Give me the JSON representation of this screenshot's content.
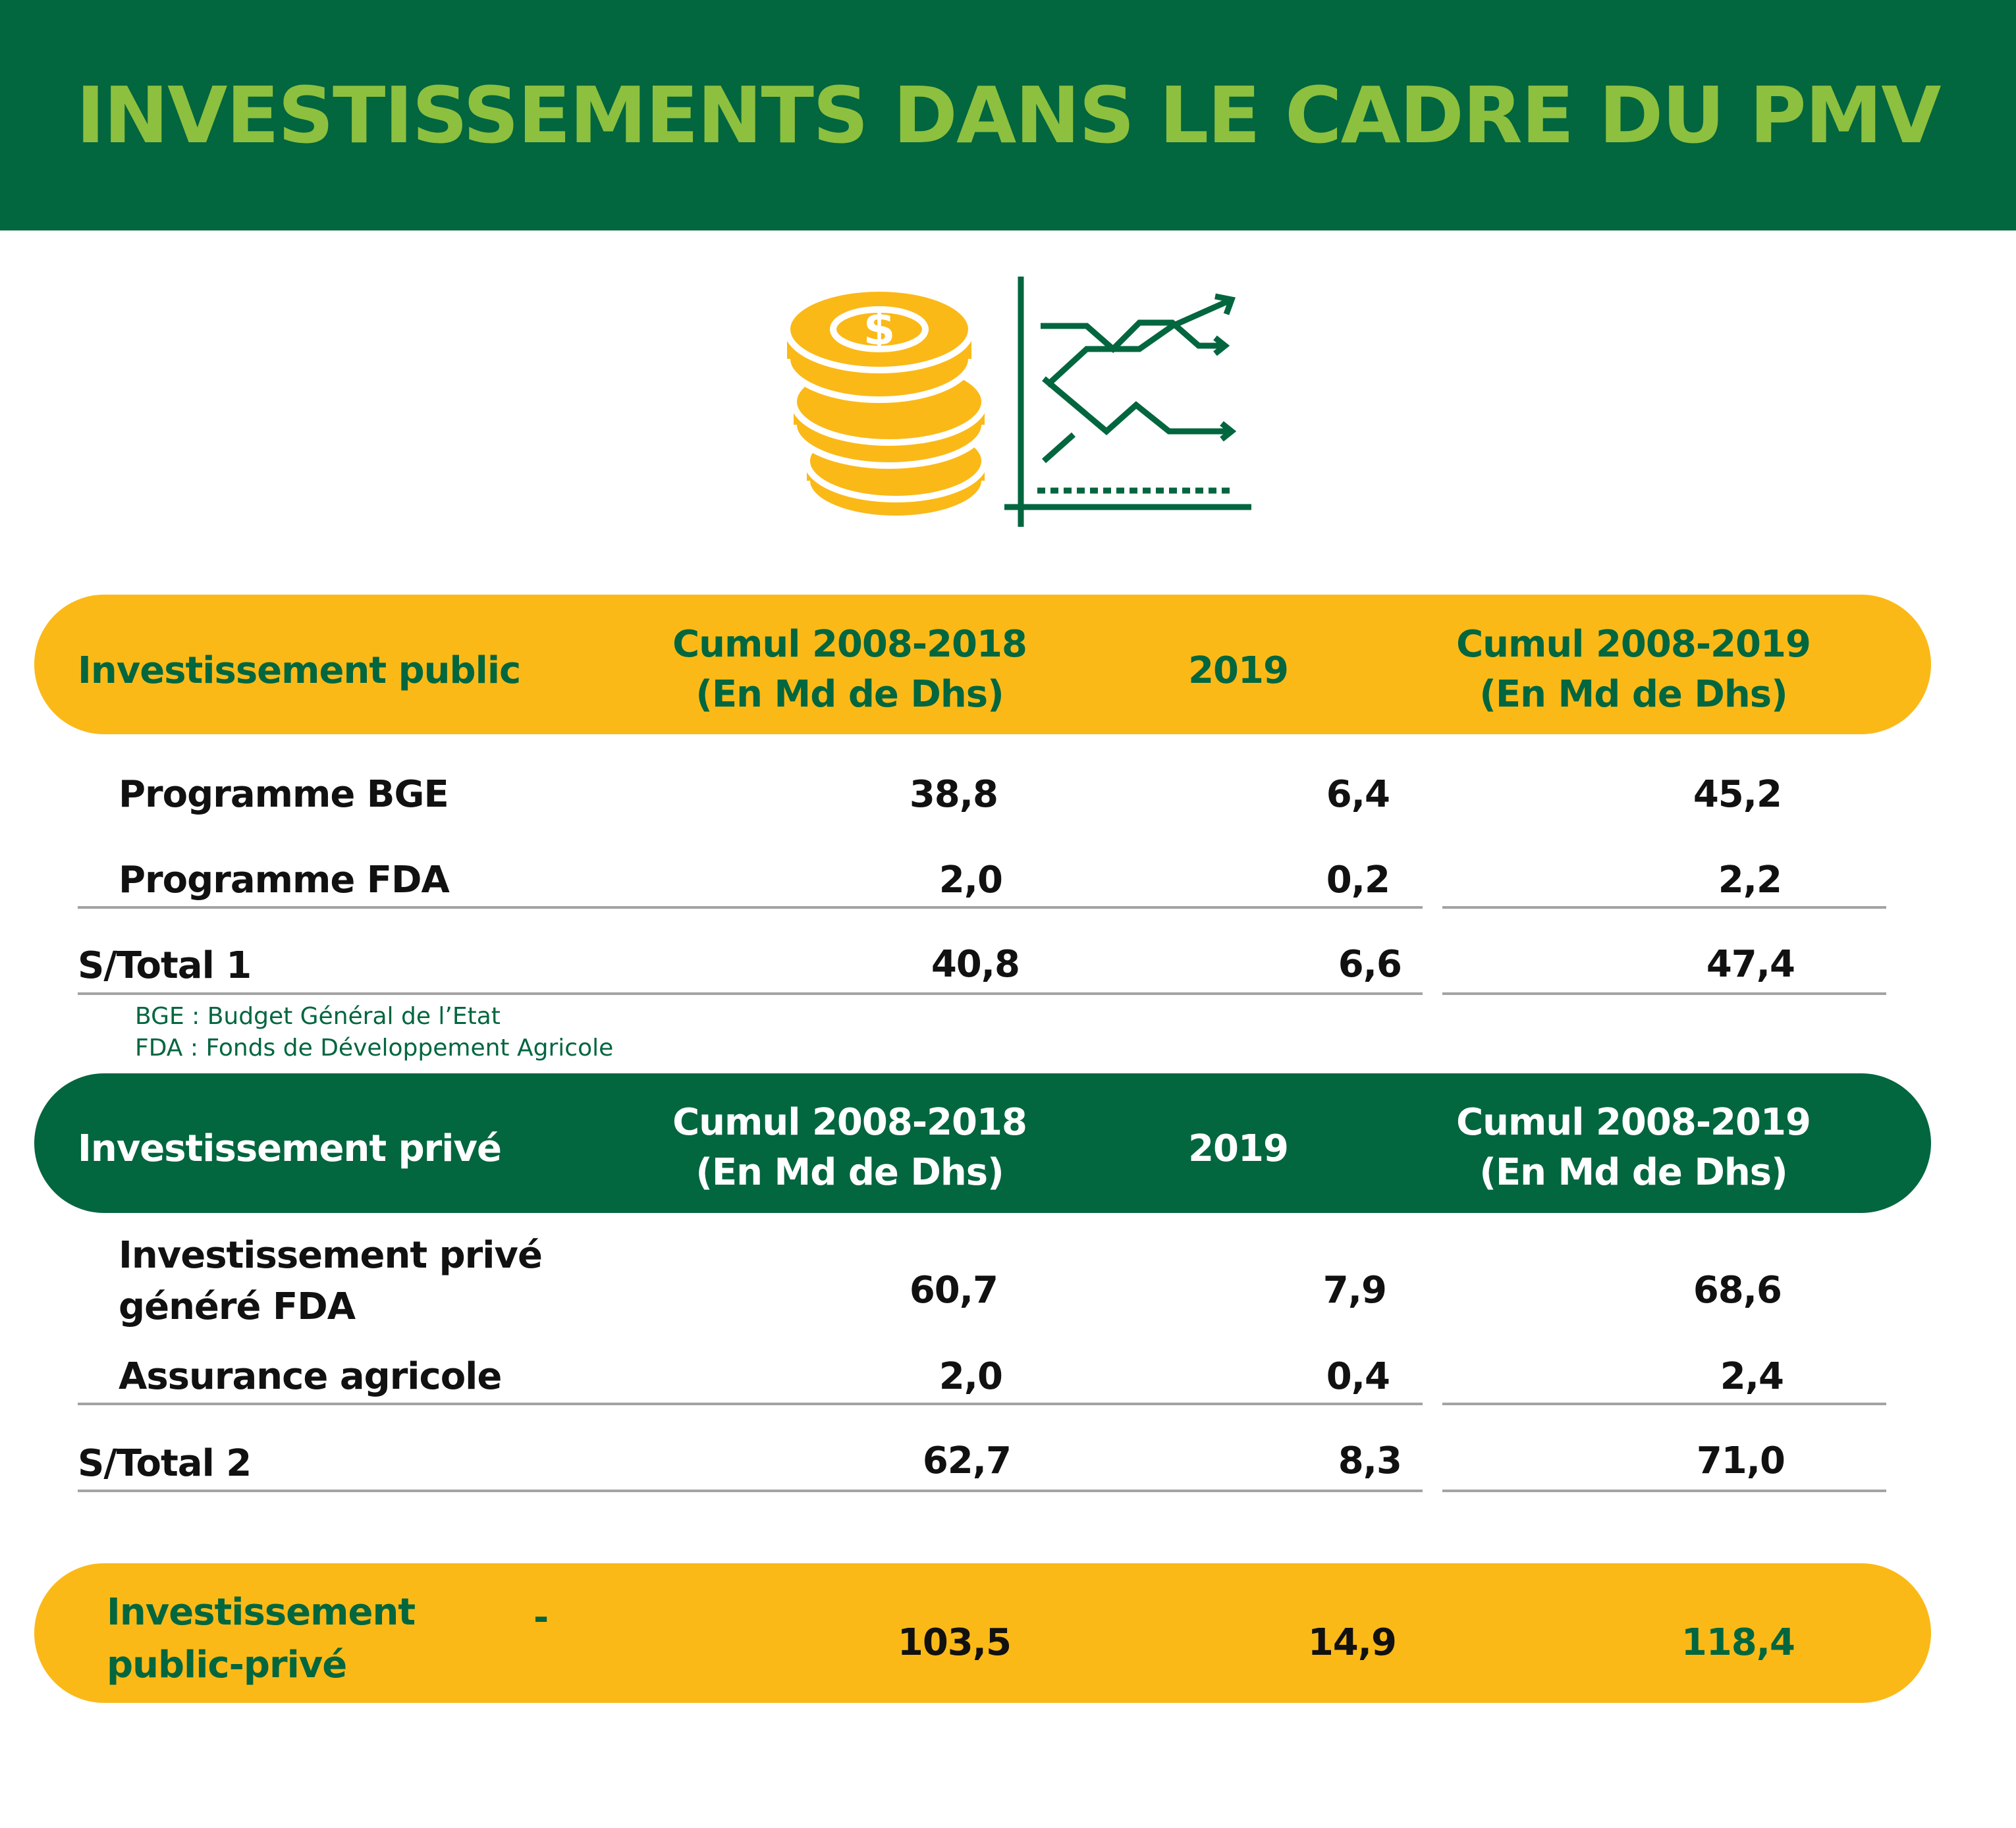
{
  "title": "INVESTISSEMENTS DANS LE CADRE DU PMV",
  "public": {
    "header": {
      "label": "Investissement public",
      "col1_line1": "Cumul 2008-2018",
      "col1_line2": "(En Md de Dhs)",
      "col2": "2019",
      "col3_line1": "Cumul 2008-2019",
      "col3_line2": "(En Md de Dhs)"
    },
    "rows": [
      {
        "label": "Programme BGE",
        "c1": "38,8",
        "c2": "6,4",
        "c3": "45,2"
      },
      {
        "label": "Programme FDA",
        "c1": "2,0",
        "c2": "0,2",
        "c3": "2,2"
      }
    ],
    "subtotal": {
      "label": "S/Total 1",
      "c1": "40,8",
      "c2": "6,6",
      "c3": "47,4"
    },
    "notes": [
      "BGE : Budget Général de l’Etat",
      "FDA : Fonds de Développement Agricole"
    ]
  },
  "private": {
    "header": {
      "label": "Investissement privé",
      "col1_line1": "Cumul 2008-2018",
      "col1_line2": "(En Md de Dhs)",
      "col2": "2019",
      "col3_line1": "Cumul 2008-2019",
      "col3_line2": "(En Md de Dhs)"
    },
    "rows": [
      {
        "label_line1": "Investissement privé",
        "label_line2": "généré FDA",
        "c1": "60,7",
        "c2": "7,9",
        "c3": "68,6"
      },
      {
        "label": "Assurance agricole",
        "c1": "2,0",
        "c2": "0,4",
        "c3": "2,4"
      }
    ],
    "subtotal": {
      "label": "S/Total 2",
      "c1": "62,7",
      "c2": "8,3",
      "c3": "71,0"
    }
  },
  "total": {
    "label_line1": "Investissement",
    "label_line2": "public-privé",
    "dash": "-",
    "c1": "103,5",
    "c2": "14,9",
    "c3": "118,4"
  },
  "colors": {
    "dark_green": "#02663f",
    "light_green": "#8dc03f",
    "yellow": "#fbb917"
  },
  "icon": "coins-and-trend-chart-icon"
}
